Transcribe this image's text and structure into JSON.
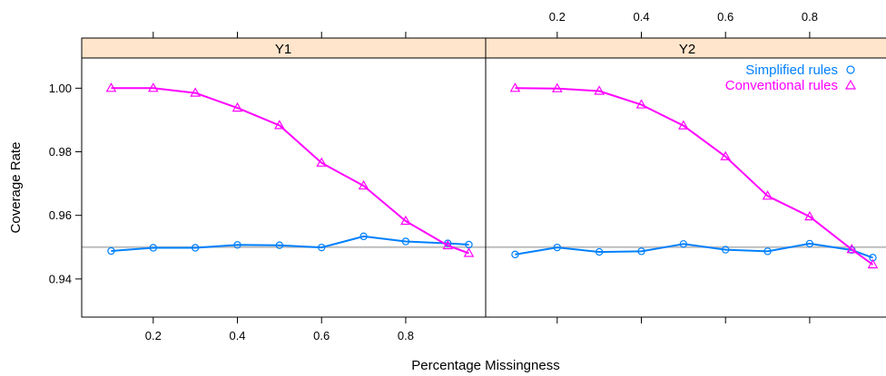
{
  "chart_data": {
    "type": "line",
    "xlabel": "Percentage Missingness",
    "ylabel": "Coverage Rate",
    "xlim": [
      0.03,
      0.99
    ],
    "ylim": [
      0.928,
      1.0095
    ],
    "x_ticks": [
      0.2,
      0.4,
      0.6,
      0.8
    ],
    "x_tick_labels": [
      "0.2",
      "0.4",
      "0.6",
      "0.8"
    ],
    "y_ticks": [
      0.94,
      0.96,
      0.98,
      1.0
    ],
    "y_tick_labels": [
      "0.94",
      "0.96",
      "0.98",
      "1.00"
    ],
    "reference_line": 0.95,
    "x": [
      0.1,
      0.2,
      0.3,
      0.4,
      0.5,
      0.6,
      0.7,
      0.8,
      0.9,
      0.95
    ],
    "legend": {
      "placement": "top-right"
    },
    "panels": [
      {
        "strip": "Y1",
        "series": [
          {
            "name": "Simplified rules",
            "color": "#0080ff",
            "marker": "circle",
            "values": [
              0.9488,
              0.9498,
              0.9498,
              0.9507,
              0.9506,
              0.9499,
              0.9534,
              0.9518,
              0.9512,
              0.9508
            ]
          },
          {
            "name": "Conventional rules",
            "color": "#ff00ff",
            "marker": "triangle",
            "values": [
              1.0,
              1.0,
              0.9985,
              0.9938,
              0.9883,
              0.9765,
              0.9693,
              0.9582,
              0.9505,
              0.9481
            ]
          }
        ]
      },
      {
        "strip": "Y2",
        "series": [
          {
            "name": "Simplified rules",
            "color": "#0080ff",
            "marker": "circle",
            "values": [
              0.9477,
              0.9499,
              0.9485,
              0.9487,
              0.951,
              0.9492,
              0.9487,
              0.9511,
              0.9491,
              0.9467
            ]
          },
          {
            "name": "Conventional rules",
            "color": "#ff00ff",
            "marker": "triangle",
            "values": [
              1.0,
              0.9999,
              0.9991,
              0.9948,
              0.9882,
              0.9785,
              0.9661,
              0.9596,
              0.9493,
              0.9445
            ]
          }
        ]
      }
    ]
  }
}
